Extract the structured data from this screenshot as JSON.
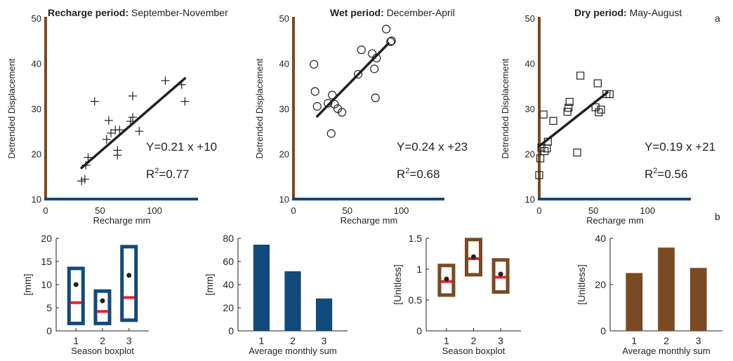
{
  "panel_letters": {
    "top": "a",
    "bottom": "b"
  },
  "colors": {
    "brown": "#7a4a22",
    "blue": "#124a7c",
    "red": "#e5232b",
    "ink": "#231f20"
  },
  "chart_data": [
    {
      "id": "scatter-recharge",
      "type": "scatter",
      "title_bold": "Recharge period:",
      "title_rest": " September-November",
      "xlabel": "Recharge  mm",
      "ylabel": "Detrended Displacement",
      "marker": "plus",
      "xlim": [
        0,
        140
      ],
      "ylim": [
        10,
        50
      ],
      "xticks": [
        0,
        50,
        100
      ],
      "yticks": [
        10,
        20,
        30,
        40,
        50
      ],
      "equation": "Y=0.21 x +10",
      "r2_prefix": "R",
      "r2_sup": "2",
      "r2_value": "=0.77",
      "fit": {
        "x": [
          33,
          128
        ],
        "y": [
          16.9,
          36.7
        ]
      },
      "points": [
        {
          "x": 33,
          "y": 14
        },
        {
          "x": 36,
          "y": 14.4
        },
        {
          "x": 37,
          "y": 17.5
        },
        {
          "x": 39,
          "y": 19.2
        },
        {
          "x": 45,
          "y": 31.6
        },
        {
          "x": 56,
          "y": 23.2
        },
        {
          "x": 58,
          "y": 27.4
        },
        {
          "x": 60,
          "y": 24.6
        },
        {
          "x": 64,
          "y": 25.3
        },
        {
          "x": 66,
          "y": 19.7
        },
        {
          "x": 66,
          "y": 20.8
        },
        {
          "x": 68,
          "y": 25.3
        },
        {
          "x": 78,
          "y": 27.2
        },
        {
          "x": 80,
          "y": 28.1
        },
        {
          "x": 80,
          "y": 32.8
        },
        {
          "x": 86,
          "y": 25
        },
        {
          "x": 110,
          "y": 36.2
        },
        {
          "x": 125,
          "y": 35.3
        },
        {
          "x": 128,
          "y": 31.6
        }
      ]
    },
    {
      "id": "scatter-wet",
      "type": "scatter",
      "title_bold": "Wet period:",
      "title_rest": " December-April",
      "xlabel": "Recharge mm",
      "ylabel": "Detrended Displacement",
      "marker": "circle",
      "xlim": [
        0,
        140
      ],
      "ylim": [
        10,
        50
      ],
      "xticks": [
        0,
        50,
        100
      ],
      "yticks": [
        10,
        20,
        30,
        40,
        50
      ],
      "equation": "Y=0.24 x +23",
      "r2_prefix": "R",
      "r2_sup": "2",
      "r2_value": "=0.68",
      "fit": {
        "x": [
          22,
          88
        ],
        "y": [
          28.3,
          44.4
        ]
      },
      "points": [
        {
          "x": 19,
          "y": 39.8
        },
        {
          "x": 20,
          "y": 33.8
        },
        {
          "x": 22,
          "y": 30.5
        },
        {
          "x": 32,
          "y": 31.2
        },
        {
          "x": 35,
          "y": 24.5
        },
        {
          "x": 36,
          "y": 33
        },
        {
          "x": 38,
          "y": 31
        },
        {
          "x": 41,
          "y": 30
        },
        {
          "x": 45,
          "y": 29.2
        },
        {
          "x": 60,
          "y": 37.6
        },
        {
          "x": 63,
          "y": 43
        },
        {
          "x": 73,
          "y": 42.2
        },
        {
          "x": 75,
          "y": 38.8
        },
        {
          "x": 76,
          "y": 32.4
        },
        {
          "x": 77,
          "y": 41.2
        },
        {
          "x": 86,
          "y": 47.6
        },
        {
          "x": 90,
          "y": 44.8
        },
        {
          "x": 91,
          "y": 45
        }
      ]
    },
    {
      "id": "scatter-dry",
      "type": "scatter",
      "title_bold": "Dry period:",
      "title_rest": " May-August",
      "xlabel": "Recharge mm",
      "ylabel": "Detrended Displacement",
      "marker": "square",
      "xlim": [
        0,
        140
      ],
      "ylim": [
        10,
        50
      ],
      "xticks": [
        0,
        50,
        100
      ],
      "yticks": [
        10,
        20,
        30,
        40,
        50
      ],
      "equation": "Y=0.19 x +21",
      "r2_prefix": "R",
      "r2_sup": "2",
      "r2_value": "=0.56",
      "fit": {
        "x": [
          0,
          63
        ],
        "y": [
          21.7,
          33.6
        ]
      },
      "points": [
        {
          "x": 0,
          "y": 15.3
        },
        {
          "x": 1,
          "y": 19
        },
        {
          "x": 2,
          "y": 21.4
        },
        {
          "x": 4,
          "y": 28.7
        },
        {
          "x": 5,
          "y": 20.6
        },
        {
          "x": 7,
          "y": 21.2
        },
        {
          "x": 8,
          "y": 22.7
        },
        {
          "x": 13,
          "y": 27.3
        },
        {
          "x": 26,
          "y": 29.3
        },
        {
          "x": 27,
          "y": 30.2
        },
        {
          "x": 28,
          "y": 31.5
        },
        {
          "x": 35,
          "y": 20.3
        },
        {
          "x": 38,
          "y": 37.3
        },
        {
          "x": 52,
          "y": 30.3
        },
        {
          "x": 54,
          "y": 35.6
        },
        {
          "x": 55,
          "y": 29.2
        },
        {
          "x": 57,
          "y": 29.8
        },
        {
          "x": 62,
          "y": 33.2
        },
        {
          "x": 65,
          "y": 33.2
        }
      ]
    },
    {
      "id": "boxplot-mm",
      "type": "boxplot",
      "xlabel": "Season boxplot",
      "ylabel": "[mm]",
      "categories": [
        "1",
        "2",
        "3"
      ],
      "ylim": [
        0,
        20
      ],
      "yticks": [
        0,
        5,
        10,
        15,
        20
      ],
      "box_color": "#124a7c",
      "boxes": [
        {
          "low": 1.6,
          "high": 13.5,
          "median": 6.1,
          "mean": 10
        },
        {
          "low": 1.6,
          "high": 8.6,
          "median": 4.2,
          "mean": 6.5
        },
        {
          "low": 2.3,
          "high": 18.2,
          "median": 7.2,
          "mean": 12
        }
      ]
    },
    {
      "id": "bar-mm",
      "type": "bar",
      "xlabel": "Average monthly sum",
      "ylabel": "[mm]",
      "categories": [
        "1",
        "2",
        "3"
      ],
      "values": [
        74.5,
        51.5,
        28
      ],
      "ylim": [
        0,
        80
      ],
      "yticks": [
        0,
        20,
        40,
        60,
        80
      ],
      "bar_color": "#124a7c"
    },
    {
      "id": "boxplot-unitless",
      "type": "boxplot",
      "xlabel": "Season boxplot",
      "ylabel": "[Unitless]",
      "categories": [
        "1",
        "2",
        "3"
      ],
      "ylim": [
        0,
        1.5
      ],
      "yticks": [
        0,
        0.5,
        1,
        1.5
      ],
      "box_color": "#7a4a22",
      "boxes": [
        {
          "low": 0.58,
          "high": 1.06,
          "median": 0.8,
          "mean": 0.84
        },
        {
          "low": 0.91,
          "high": 1.48,
          "median": 1.17,
          "mean": 1.2
        },
        {
          "low": 0.63,
          "high": 1.15,
          "median": 0.87,
          "mean": 0.92
        }
      ]
    },
    {
      "id": "bar-unitless",
      "type": "bar",
      "xlabel": "Average monthly sum",
      "ylabel": "[Unitless]",
      "categories": [
        "1",
        "2",
        "3"
      ],
      "values": [
        25,
        36,
        27.2
      ],
      "ylim": [
        0,
        40
      ],
      "yticks": [
        0,
        20,
        40
      ],
      "bar_color": "#7a4a22"
    }
  ]
}
